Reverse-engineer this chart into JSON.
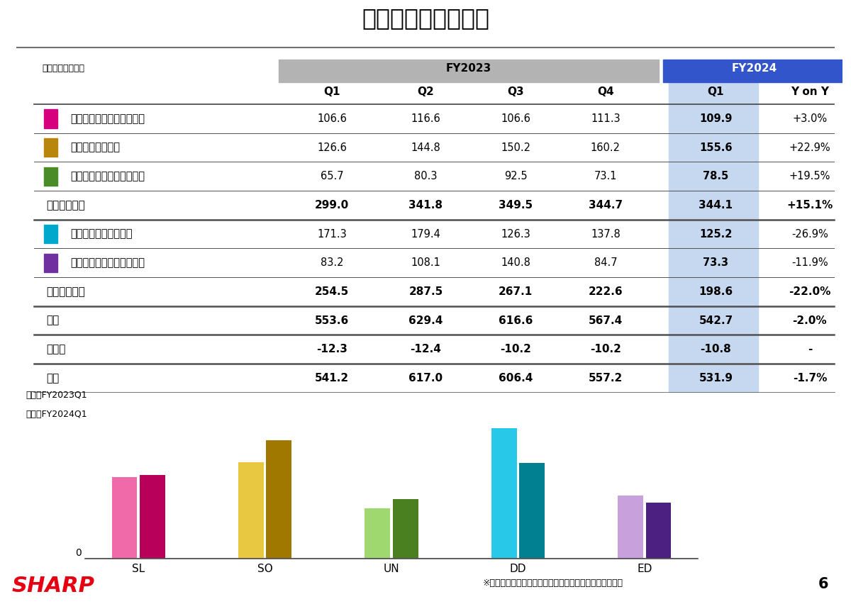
{
  "title": "セグメント別売上高",
  "unit_label": "（単位：十億円）",
  "header_fy2023": "FY2023",
  "header_fy2024": "FY2024",
  "col_headers": [
    "Q1",
    "Q2",
    "Q3",
    "Q4",
    "Q1",
    "Y on Y"
  ],
  "rows": [
    {
      "label": "スマートライフ＆エナジー",
      "color": "#d6007f",
      "indent": true,
      "values": [
        "106.6",
        "116.6",
        "106.6",
        "111.3",
        "109.9",
        "+3.0%"
      ]
    },
    {
      "label": "スマートオフィス",
      "color": "#b8860b",
      "indent": true,
      "values": [
        "126.6",
        "144.8",
        "150.2",
        "160.2",
        "155.6",
        "+22.9%"
      ]
    },
    {
      "label": "ユニバーサルネットワーク",
      "color": "#4a8c28",
      "indent": true,
      "values": [
        "65.7",
        "80.3",
        "92.5",
        "73.1",
        "78.5",
        "+19.5%"
      ]
    },
    {
      "label": "ブランド事業",
      "color": null,
      "indent": false,
      "values": [
        "299.0",
        "341.8",
        "349.5",
        "344.7",
        "344.1",
        "+15.1%"
      ]
    },
    {
      "label": "ディスプレイデバイス",
      "color": "#00a8cc",
      "indent": true,
      "values": [
        "171.3",
        "179.4",
        "126.3",
        "137.8",
        "125.2",
        "-26.9%"
      ]
    },
    {
      "label": "エレクトロニックデバイス",
      "color": "#7030a0",
      "indent": true,
      "values": [
        "83.2",
        "108.1",
        "140.8",
        "84.7",
        "73.3",
        "-11.9%"
      ]
    },
    {
      "label": "デバイス事業",
      "color": null,
      "indent": false,
      "values": [
        "254.5",
        "287.5",
        "267.1",
        "222.6",
        "198.6",
        "-22.0%"
      ]
    },
    {
      "label": "小計",
      "color": null,
      "indent": false,
      "values": [
        "553.6",
        "629.4",
        "616.6",
        "567.4",
        "542.7",
        "-2.0%"
      ]
    },
    {
      "label": "調整額",
      "color": null,
      "indent": false,
      "values": [
        "-12.3",
        "-12.4",
        "-10.2",
        "-10.2",
        "-10.8",
        "-"
      ]
    },
    {
      "label": "合計",
      "color": null,
      "indent": false,
      "values": [
        "541.2",
        "617.0",
        "606.4",
        "557.2",
        "531.9",
        "-1.7%"
      ]
    }
  ],
  "bar_data": {
    "categories": [
      "SL",
      "SO",
      "UN",
      "DD",
      "ED"
    ],
    "fy2023_q1": [
      106.6,
      126.6,
      65.7,
      171.3,
      83.2
    ],
    "fy2024_q1": [
      109.9,
      155.6,
      78.5,
      125.2,
      73.3
    ],
    "colors_2023": [
      "#f06aaa",
      "#e8c840",
      "#a0d870",
      "#28c8e8",
      "#c8a0dc"
    ],
    "colors_2024": [
      "#b8005a",
      "#a07800",
      "#4a8020",
      "#008090",
      "#4c2080"
    ]
  },
  "legend_line1": "左棒：FY2023Q1",
  "legend_line2": "右棒：FY2024Q1",
  "footnote": "※セグメント間の内部売上高又は振替高を含んでいます。",
  "page_number": "6",
  "sharp_color": "#e60012",
  "header_fy2023_bg": "#b3b3b3",
  "header_fy2024_bg": "#3355cc",
  "fy2024_q1_col_bg": "#c5d8f0",
  "table_line_color": "#505050",
  "thick_row_indices": [
    3,
    6,
    7,
    8,
    9
  ]
}
